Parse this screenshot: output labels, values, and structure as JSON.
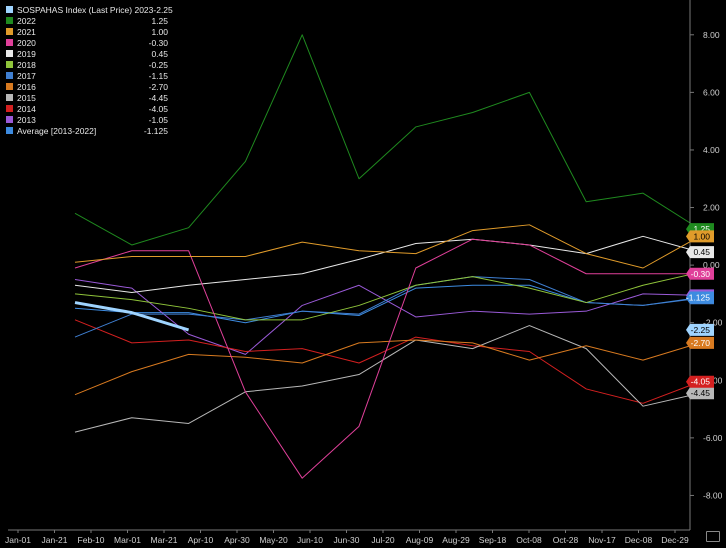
{
  "chart_data": {
    "type": "line",
    "title": "",
    "xlabel": "",
    "ylabel": "",
    "ylim": [
      -9.2,
      9.0
    ],
    "yticks": [
      8.0,
      6.0,
      4.0,
      2.0,
      0.0,
      -2.0,
      -4.0,
      -6.0,
      -8.0
    ],
    "ytick_labels": [
      "8.00",
      "6.00",
      "4.00",
      "2.00",
      "0.00",
      "-2.00",
      "-4.00",
      "-6.00",
      "-8.00"
    ],
    "xticks": [
      "Jan-01",
      "Jan-21",
      "Feb-10",
      "Mar-01",
      "Mar-21",
      "Apr-10",
      "Apr-30",
      "May-20",
      "Jun-10",
      "Jun-30",
      "Jul-20",
      "Aug-09",
      "Aug-29",
      "Sep-18",
      "Oct-08",
      "Oct-28",
      "Nov-17",
      "Dec-08",
      "Dec-29"
    ],
    "x_dates": [
      "Jan-31",
      "Feb-28",
      "Mar-31",
      "Apr-30",
      "May-31",
      "Jun-30",
      "Jul-31",
      "Aug-31",
      "Sep-30",
      "Oct-31",
      "Nov-30",
      "Dec-31"
    ],
    "legend_position": "top-left",
    "grid": false,
    "series": [
      {
        "name": "SOSPAHAS Index (Last Price) 2023",
        "legend_value": "-2.25",
        "color": "#9fd4ff",
        "width": 3,
        "values": [
          -1.3,
          -1.65,
          -2.25
        ]
      },
      {
        "name": "2022",
        "legend_value": "1.25",
        "color": "#1f8a1f",
        "values": [
          1.8,
          0.7,
          1.3,
          3.6,
          8.0,
          3.0,
          4.8,
          5.3,
          6.0,
          2.2,
          2.5,
          1.25
        ]
      },
      {
        "name": "2021",
        "legend_value": "1.00",
        "color": "#e09b2a",
        "values": [
          0.1,
          0.3,
          0.3,
          0.3,
          0.8,
          0.5,
          0.4,
          1.2,
          1.4,
          0.4,
          -0.1,
          1.0
        ]
      },
      {
        "name": "2020",
        "legend_value": "-0.30",
        "color": "#e0409a",
        "values": [
          -0.1,
          0.5,
          0.5,
          -4.4,
          -7.4,
          -5.6,
          -0.1,
          0.9,
          0.7,
          -0.3,
          -0.3,
          -0.3
        ]
      },
      {
        "name": "2019",
        "legend_value": "0.45",
        "color": "#e8e8e8",
        "values": [
          -0.7,
          -0.95,
          -0.7,
          -0.5,
          -0.3,
          0.2,
          0.75,
          0.9,
          0.7,
          0.4,
          1.0,
          0.45
        ]
      },
      {
        "name": "2018",
        "legend_value": "-0.25",
        "color": "#8fc43a",
        "values": [
          -1.0,
          -1.2,
          -1.5,
          -1.9,
          -1.9,
          -1.4,
          -0.7,
          -0.4,
          -0.8,
          -1.3,
          -0.7,
          -0.25
        ]
      },
      {
        "name": "2017",
        "legend_value": "-1.15",
        "color": "#3f7fd1",
        "values": [
          -2.5,
          -1.7,
          -1.7,
          -1.9,
          -1.6,
          -1.7,
          -0.7,
          -0.4,
          -0.5,
          -1.3,
          -1.4,
          -1.15
        ]
      },
      {
        "name": "2016",
        "legend_value": "-2.70",
        "color": "#d87a20",
        "values": [
          -4.5,
          -3.7,
          -3.1,
          -3.2,
          -3.4,
          -2.7,
          -2.6,
          -2.7,
          -3.3,
          -2.8,
          -3.3,
          -2.7
        ]
      },
      {
        "name": "2015",
        "legend_value": "-4.45",
        "color": "#b8b8b8",
        "values": [
          -5.8,
          -5.3,
          -5.5,
          -4.4,
          -4.2,
          -3.8,
          -2.6,
          -2.9,
          -2.1,
          -2.9,
          -4.9,
          -4.45
        ]
      },
      {
        "name": "2014",
        "legend_value": "-4.05",
        "color": "#d42020",
        "values": [
          -1.9,
          -2.7,
          -2.6,
          -3.0,
          -2.9,
          -3.4,
          -2.5,
          -2.8,
          -3.0,
          -4.3,
          -4.8,
          -4.05
        ]
      },
      {
        "name": "2013",
        "legend_value": "-1.05",
        "color": "#9a5ad8",
        "values": [
          -0.5,
          -0.8,
          -2.4,
          -3.1,
          -1.4,
          -0.7,
          -1.8,
          -1.6,
          -1.7,
          -1.6,
          -1.0,
          -1.05
        ]
      },
      {
        "name": "Average  [2013-2022]",
        "legend_value": "-1.125",
        "color": "#3d8be0",
        "values": [
          -1.5,
          -1.65,
          -1.65,
          -2.0,
          -1.6,
          -1.75,
          -0.8,
          -0.7,
          -0.7,
          -1.3,
          -1.4,
          -1.125
        ]
      }
    ]
  }
}
